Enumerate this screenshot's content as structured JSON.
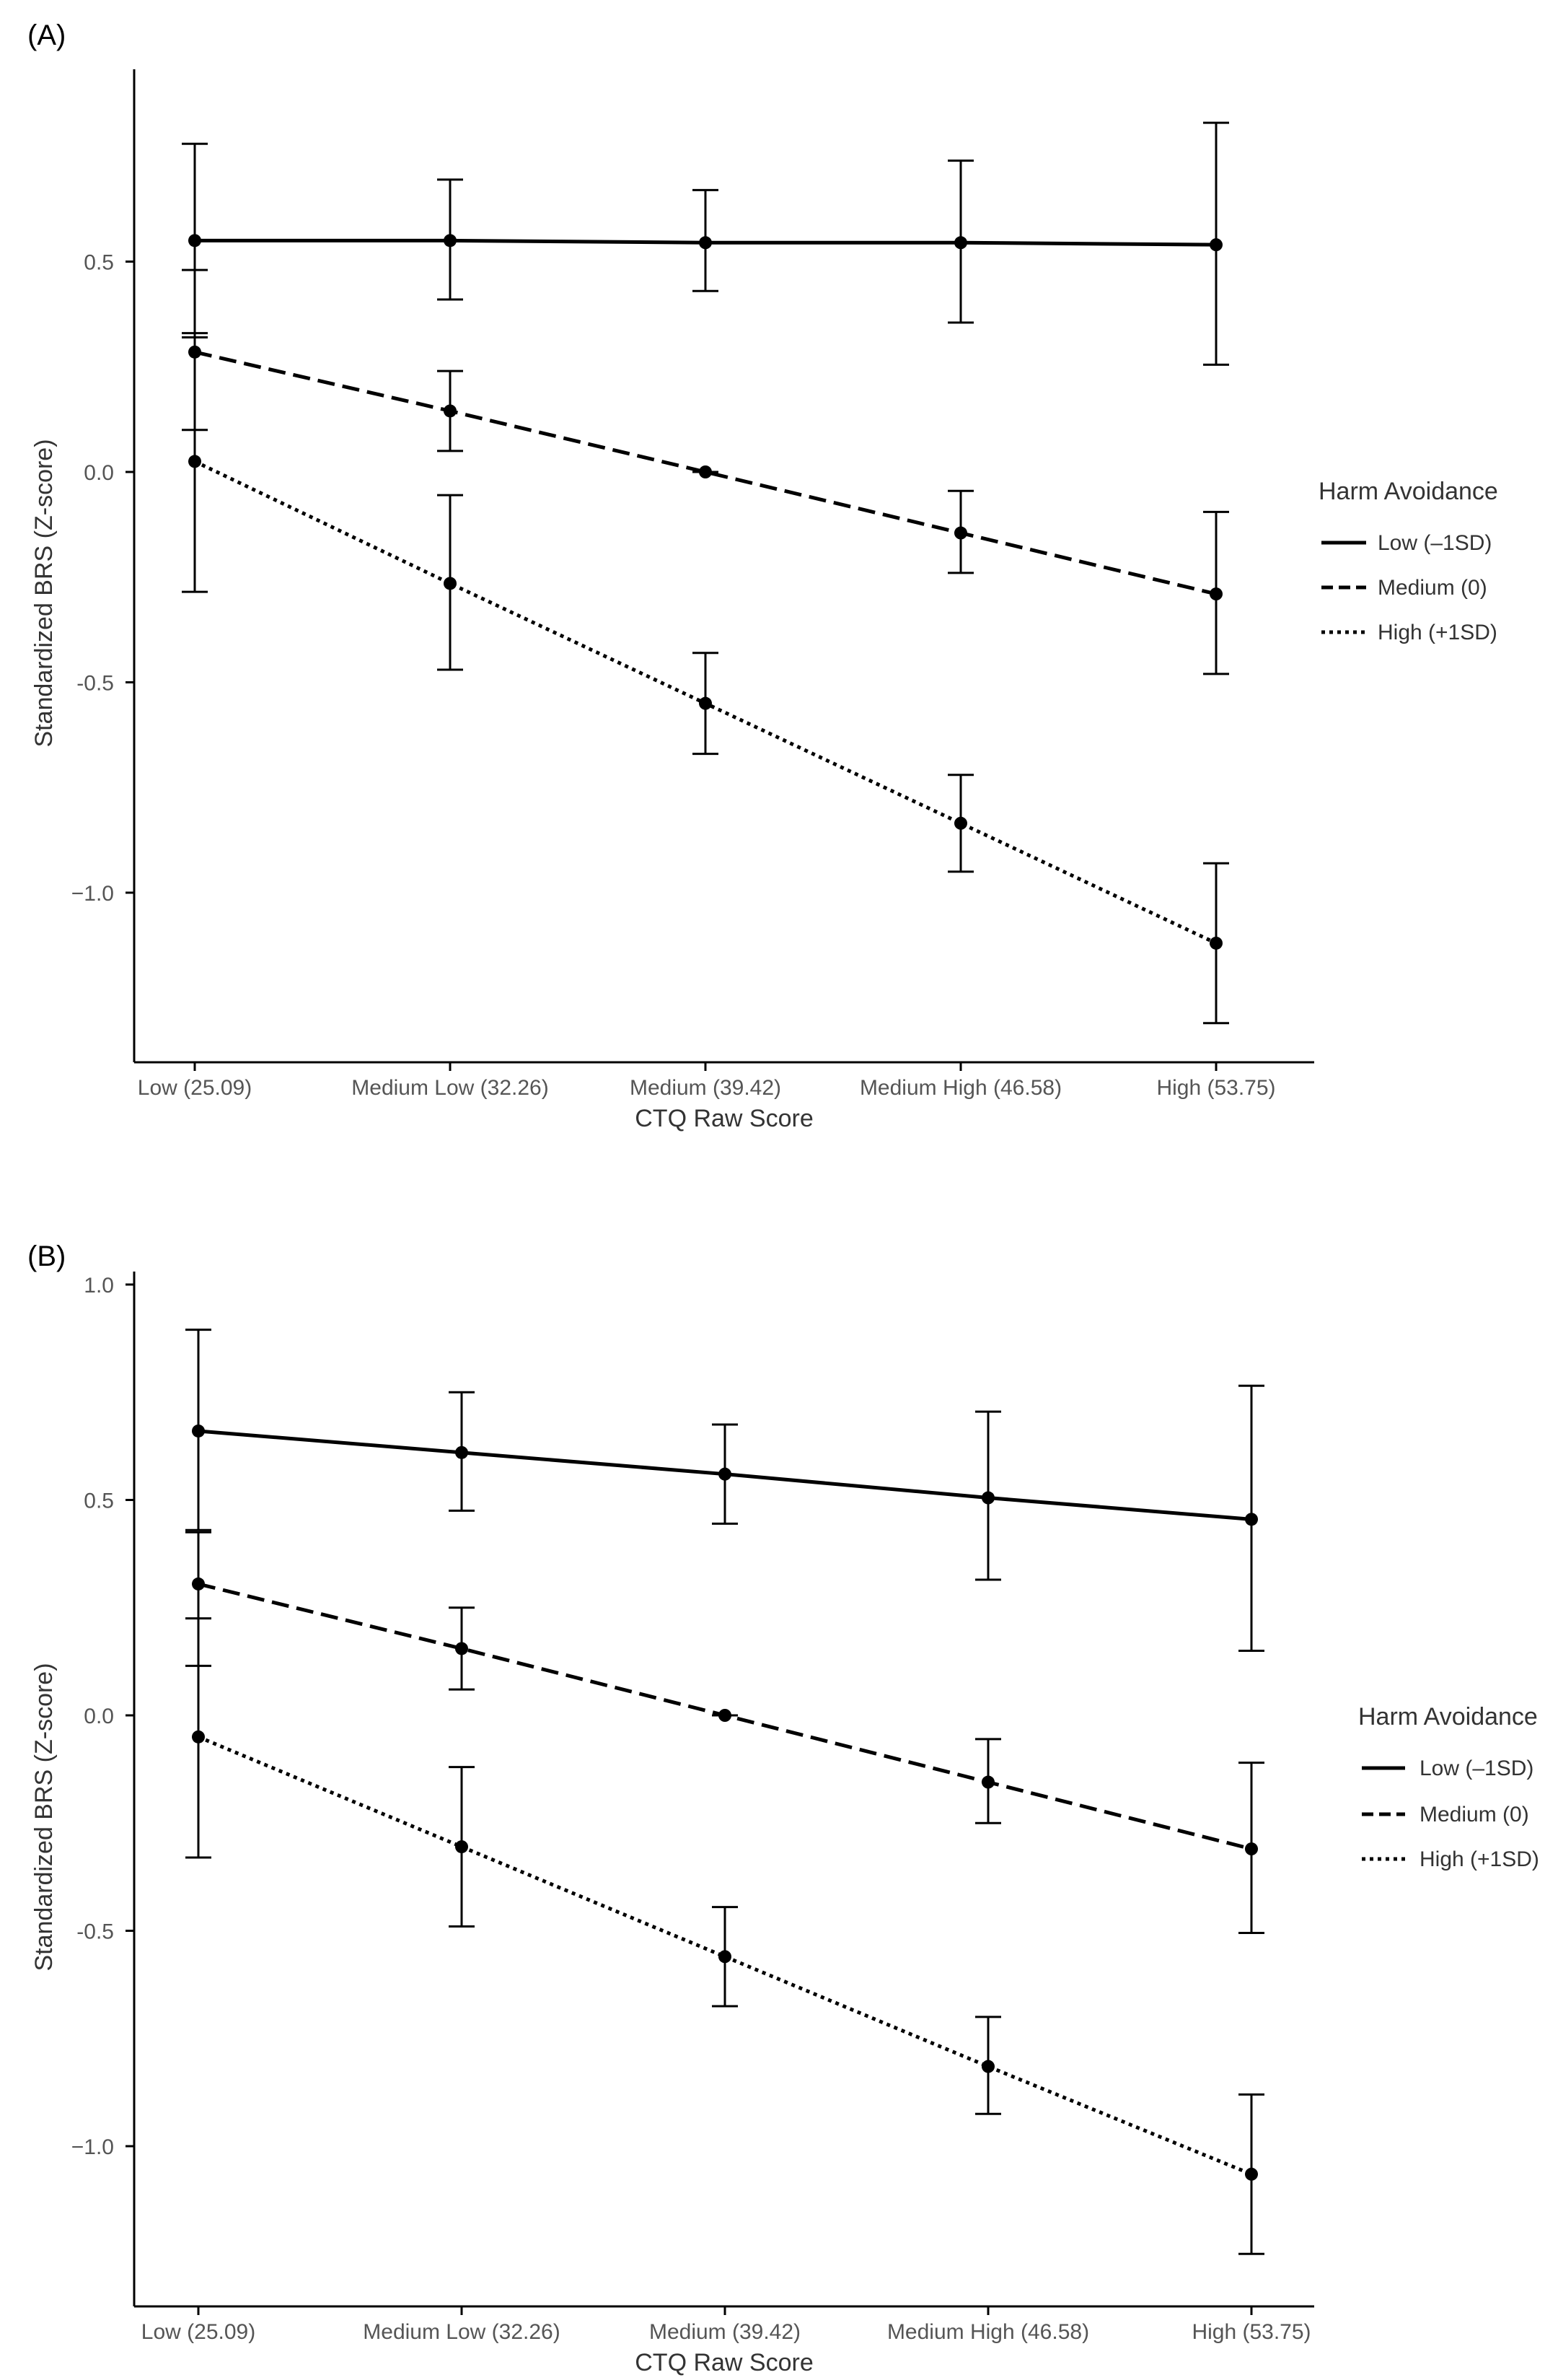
{
  "chart_data": [
    {
      "panel_label": "(A)",
      "type": "line",
      "xlabel": "CTQ Raw Score",
      "ylabel": "Standardized BRS (Z-score)",
      "categories": [
        "Low (25.09)",
        "Medium Low (32.26)",
        "Medium (39.42)",
        "Medium High (46.58)",
        "High (53.75)"
      ],
      "ylim": [
        -1.42,
        0.94
      ],
      "yticks": [
        0.5,
        0.0,
        -0.5,
        -1.0
      ],
      "ytick_labels": [
        "0.5",
        "0.0",
        "-0.5",
        "−1.0"
      ],
      "legend_title": "Harm Avoidance",
      "series": [
        {
          "name": "Low (–1SD)",
          "style": "solid",
          "values": [
            0.55,
            0.55,
            0.545,
            0.545,
            0.54
          ],
          "lower": [
            0.32,
            0.41,
            0.43,
            0.355,
            0.255
          ],
          "upper": [
            0.78,
            0.695,
            0.67,
            0.74,
            0.83
          ]
        },
        {
          "name": "Medium (0)",
          "style": "dashed",
          "values": [
            0.285,
            0.145,
            0.0,
            -0.145,
            -0.29
          ],
          "lower": [
            0.1,
            0.05,
            0.0,
            -0.24,
            -0.48
          ],
          "upper": [
            0.48,
            0.24,
            0.0,
            -0.045,
            -0.095
          ]
        },
        {
          "name": "High (+1SD)",
          "style": "dotted",
          "values": [
            0.025,
            -0.265,
            -0.55,
            -0.835,
            -1.12
          ],
          "lower": [
            -0.285,
            -0.47,
            -0.67,
            -0.95,
            -1.31
          ],
          "upper": [
            0.33,
            -0.055,
            -0.43,
            -0.72,
            -0.93
          ]
        }
      ]
    },
    {
      "panel_label": "(B)",
      "type": "line",
      "xlabel": "CTQ Raw Score",
      "ylabel": "Standardized BRS (Z-score)",
      "categories": [
        "Low (25.09)",
        "Medium Low (32.26)",
        "Medium (39.42)",
        "Medium High (46.58)",
        "High (53.75)"
      ],
      "ylim": [
        -1.35,
        1.0
      ],
      "yticks": [
        1.0,
        0.5,
        0.0,
        -0.5,
        -1.0
      ],
      "ytick_labels": [
        "1.0",
        "0.5",
        "0.0",
        "-0.5",
        "−1.0"
      ],
      "legend_title": "Harm Avoidance",
      "series": [
        {
          "name": "Low (–1SD)",
          "style": "solid",
          "values": [
            0.66,
            0.61,
            0.56,
            0.505,
            0.455
          ],
          "lower": [
            0.43,
            0.475,
            0.445,
            0.315,
            0.15
          ],
          "upper": [
            0.895,
            0.75,
            0.675,
            0.705,
            0.765
          ]
        },
        {
          "name": "Medium (0)",
          "style": "dashed",
          "values": [
            0.305,
            0.155,
            0.0,
            -0.155,
            -0.31
          ],
          "lower": [
            0.115,
            0.06,
            0.0,
            -0.25,
            -0.505
          ],
          "upper": [
            0.425,
            0.25,
            0.0,
            -0.055,
            -0.11
          ]
        },
        {
          "name": "High (+1SD)",
          "style": "dotted",
          "values": [
            -0.05,
            -0.305,
            -0.56,
            -0.815,
            -1.065
          ],
          "lower": [
            -0.33,
            -0.49,
            -0.675,
            -0.925,
            -1.25
          ],
          "upper": [
            0.225,
            -0.12,
            -0.445,
            -0.7,
            -0.88
          ]
        }
      ]
    }
  ]
}
